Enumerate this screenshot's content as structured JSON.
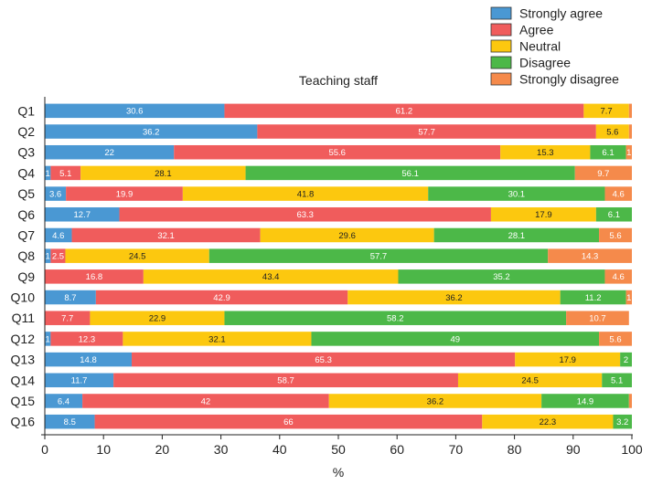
{
  "chart_data": {
    "type": "bar",
    "orientation": "horizontal",
    "stacked": true,
    "title": "Teaching staff",
    "xlabel": "%",
    "ylabel": "",
    "xlim": [
      0,
      100
    ],
    "xticks": [
      "0",
      "10",
      "20",
      "30",
      "40",
      "50",
      "60",
      "70",
      "80",
      "90",
      "100"
    ],
    "legend_position": "top-right",
    "categories": [
      "Q1",
      "Q2",
      "Q3",
      "Q4",
      "Q5",
      "Q6",
      "Q7",
      "Q8",
      "Q9",
      "Q10",
      "Q11",
      "Q12",
      "Q13",
      "Q14",
      "Q15",
      "Q16"
    ],
    "series": [
      {
        "name": "Strongly agree",
        "color": "#4a98d3",
        "label_color": "#ffffff",
        "values": [
          30.6,
          36.2,
          22,
          1,
          3.6,
          12.7,
          4.6,
          1,
          0,
          8.7,
          0,
          1,
          14.8,
          11.7,
          6.4,
          8.5
        ],
        "labels": [
          "30.6",
          "36.2",
          "22",
          "1",
          "3.6",
          "12.7",
          "4.6",
          "1",
          "",
          "8.7",
          "",
          "1",
          "14.8",
          "11.7",
          "6.4",
          "8.5"
        ]
      },
      {
        "name": "Agree",
        "color": "#f05c5c",
        "label_color": "#ffffff",
        "values": [
          61.2,
          57.7,
          55.6,
          5.1,
          19.9,
          63.3,
          32.1,
          2.5,
          16.8,
          42.9,
          7.7,
          12.3,
          65.3,
          58.7,
          42,
          66
        ],
        "labels": [
          "61.2",
          "57.7",
          "55.6",
          "5.1",
          "19.9",
          "63.3",
          "32.1",
          "2.5",
          "16.8",
          "42.9",
          "7.7",
          "12.3",
          "65.3",
          "58.7",
          "42",
          "66"
        ]
      },
      {
        "name": "Neutral",
        "color": "#fcc80f",
        "label_color": "#222222",
        "values": [
          7.7,
          5.6,
          15.3,
          28.1,
          41.8,
          17.9,
          29.6,
          24.5,
          43.4,
          36.2,
          22.9,
          32.1,
          17.9,
          24.5,
          36.2,
          22.3
        ],
        "labels": [
          "7.7",
          "5.6",
          "15.3",
          "28.1",
          "41.8",
          "17.9",
          "29.6",
          "24.5",
          "43.4",
          "36.2",
          "22.9",
          "32.1",
          "17.9",
          "24.5",
          "36.2",
          "22.3"
        ]
      },
      {
        "name": "Disagree",
        "color": "#4cb848",
        "label_color": "#ffffff",
        "values": [
          0,
          0,
          6.1,
          56.1,
          30.1,
          6.1,
          28.1,
          57.7,
          35.2,
          11.2,
          58.2,
          49,
          2,
          5.1,
          14.9,
          3.2
        ],
        "labels": [
          "",
          "",
          "6.1",
          "56.1",
          "30.1",
          "6.1",
          "28.1",
          "57.7",
          "35.2",
          "11.2",
          "58.2",
          "49",
          "2",
          "5.1",
          "14.9",
          "3.2"
        ]
      },
      {
        "name": "Strongly disagree",
        "color": "#f58a4b",
        "label_color": "#ffffff",
        "values": [
          0.5,
          0.5,
          1,
          9.7,
          4.6,
          0,
          5.6,
          14.3,
          4.6,
          1,
          10.7,
          5.6,
          0,
          0,
          0.5,
          0
        ],
        "labels": [
          "",
          "",
          "1",
          "9.7",
          "4.6",
          "",
          "5.6",
          "14.3",
          "4.6",
          "1",
          "10.7",
          "5.6",
          "",
          "",
          "",
          ""
        ]
      }
    ]
  }
}
